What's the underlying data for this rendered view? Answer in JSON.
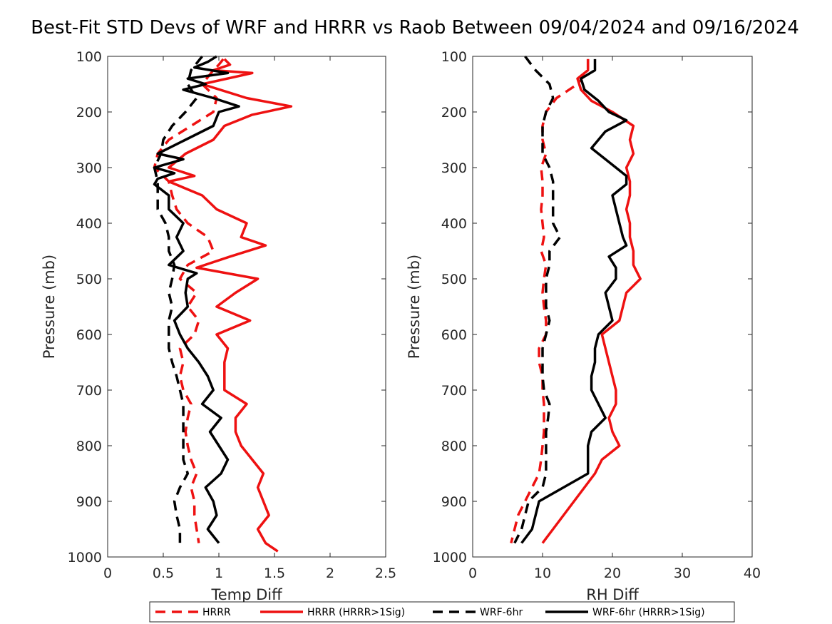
{
  "chart_data": {
    "title": "Best-Fit STD Devs of WRF and HRRR vs Raob Between 09/04/2024 and 09/16/2024",
    "legend": {
      "placement": "bottom",
      "entries": [
        {
          "label": "HRRR",
          "color": "#ee1111",
          "dash": "dashed"
        },
        {
          "label": "HRRR (HRRR>1Sig)",
          "color": "#ee1111",
          "dash": "solid"
        },
        {
          "label": "WRF-6hr",
          "color": "#000000",
          "dash": "dashed"
        },
        {
          "label": "WRF-6hr (HRRR>1Sig)",
          "color": "#000000",
          "dash": "solid"
        }
      ]
    },
    "panels": [
      {
        "type": "line",
        "xlabel": "Temp Diff",
        "ylabel": "Pressure (mb)",
        "xlim": [
          0,
          2.5
        ],
        "ylim": [
          100,
          1000
        ],
        "y_reversed": true,
        "xticks": [
          "0",
          "0.5",
          "1",
          "1.5",
          "2",
          "2.5"
        ],
        "yticks": [
          "100",
          "200",
          "300",
          "400",
          "500",
          "600",
          "700",
          "800",
          "900",
          "1000"
        ],
        "series": [
          {
            "name": "HRRR",
            "color": "#ee1111",
            "dash": "dashed",
            "pressure": [
              105,
              115,
              125,
              150,
              175,
              200,
              225,
              250,
              275,
              300,
              325,
              350,
              375,
              400,
              425,
              450,
              475,
              500,
              525,
              550,
              575,
              600,
              625,
              650,
              675,
              700,
              725,
              750,
              775,
              800,
              825,
              850,
              875,
              900,
              925,
              950,
              975
            ],
            "values": [
              1.04,
              1.0,
              0.95,
              0.85,
              0.98,
              0.95,
              0.75,
              0.55,
              0.45,
              0.42,
              0.55,
              0.58,
              0.62,
              0.72,
              0.9,
              0.95,
              0.72,
              0.65,
              0.8,
              0.72,
              0.82,
              0.78,
              0.65,
              0.68,
              0.65,
              0.68,
              0.75,
              0.72,
              0.7,
              0.72,
              0.75,
              0.8,
              0.75,
              0.78,
              0.78,
              0.8,
              0.82
            ]
          },
          {
            "name": "HRRR (HRRR>1Sig)",
            "color": "#ee1111",
            "dash": "solid",
            "pressure": [
              105,
              115,
              125,
              130,
              150,
              175,
              190,
              205,
              225,
              250,
              275,
              300,
              315,
              325,
              350,
              375,
              400,
              425,
              440,
              460,
              480,
              500,
              525,
              550,
              575,
              600,
              625,
              650,
              675,
              700,
              725,
              750,
              775,
              800,
              825,
              850,
              875,
              900,
              925,
              950,
              975,
              990
            ],
            "values": [
              1.05,
              1.1,
              0.95,
              1.3,
              0.85,
              1.25,
              1.65,
              1.3,
              1.05,
              0.95,
              0.7,
              0.55,
              0.78,
              0.55,
              0.85,
              0.98,
              1.25,
              1.2,
              1.42,
              1.1,
              0.8,
              1.35,
              1.15,
              0.98,
              1.28,
              0.98,
              1.08,
              1.05,
              1.05,
              1.05,
              1.25,
              1.15,
              1.15,
              1.2,
              1.3,
              1.4,
              1.35,
              1.4,
              1.45,
              1.35,
              1.42,
              1.53
            ]
          },
          {
            "name": "WRF-6hr",
            "color": "#000000",
            "dash": "dashed",
            "pressure": [
              100,
              125,
              150,
              175,
              200,
              225,
              250,
              275,
              300,
              325,
              350,
              375,
              400,
              425,
              450,
              475,
              500,
              525,
              550,
              575,
              600,
              625,
              650,
              675,
              700,
              725,
              750,
              775,
              800,
              825,
              850,
              875,
              900,
              925,
              950,
              975
            ],
            "values": [
              0.85,
              0.75,
              0.72,
              0.8,
              0.7,
              0.58,
              0.5,
              0.48,
              0.42,
              0.45,
              0.45,
              0.45,
              0.52,
              0.55,
              0.55,
              0.6,
              0.58,
              0.55,
              0.58,
              0.55,
              0.55,
              0.55,
              0.58,
              0.62,
              0.65,
              0.68,
              0.68,
              0.68,
              0.68,
              0.68,
              0.72,
              0.65,
              0.6,
              0.62,
              0.65,
              0.65
            ]
          },
          {
            "name": "WRF-6hr (HRRR>1Sig)",
            "color": "#000000",
            "dash": "solid",
            "pressure": [
              100,
              110,
              120,
              130,
              140,
              150,
              160,
              175,
              190,
              200,
              225,
              250,
              275,
              285,
              300,
              310,
              320,
              330,
              350,
              375,
              400,
              425,
              450,
              475,
              490,
              500,
              525,
              550,
              575,
              600,
              625,
              650,
              675,
              700,
              725,
              750,
              775,
              800,
              825,
              850,
              875,
              900,
              925,
              950,
              975
            ],
            "values": [
              0.98,
              0.9,
              0.78,
              1.08,
              0.72,
              0.88,
              0.68,
              0.95,
              1.18,
              1.0,
              0.95,
              0.7,
              0.45,
              0.68,
              0.42,
              0.6,
              0.45,
              0.42,
              0.55,
              0.55,
              0.68,
              0.62,
              0.68,
              0.55,
              0.8,
              0.72,
              0.7,
              0.72,
              0.6,
              0.65,
              0.72,
              0.82,
              0.9,
              0.95,
              0.85,
              1.02,
              0.92,
              1.0,
              1.08,
              1.02,
              0.88,
              0.95,
              0.98,
              0.9,
              1.0
            ]
          }
        ]
      },
      {
        "type": "line",
        "xlabel": "RH Diff",
        "ylabel": "Pressure (mb)",
        "xlim": [
          0,
          40
        ],
        "ylim": [
          100,
          1000
        ],
        "y_reversed": true,
        "xticks": [
          "0",
          "10",
          "20",
          "30",
          "40"
        ],
        "yticks": [
          "100",
          "200",
          "300",
          "400",
          "500",
          "600",
          "700",
          "800",
          "900",
          "1000"
        ],
        "series": [
          {
            "name": "HRRR",
            "color": "#ee1111",
            "dash": "dashed",
            "pressure": [
              105,
              125,
              150,
              175,
              200,
              225,
              250,
              275,
              300,
              325,
              350,
              375,
              400,
              425,
              450,
              475,
              500,
              525,
              550,
              575,
              600,
              625,
              650,
              675,
              700,
              725,
              750,
              775,
              800,
              825,
              850,
              875,
              900,
              925,
              950,
              975
            ],
            "values": [
              16.5,
              16.5,
              15.0,
              12.0,
              10.5,
              10.0,
              10.0,
              10.5,
              9.8,
              10.0,
              10.0,
              9.8,
              10.0,
              10.2,
              9.8,
              10.5,
              10.2,
              10.0,
              10.2,
              10.5,
              10.5,
              9.5,
              9.5,
              10.0,
              10.0,
              10.2,
              10.2,
              10.2,
              10.0,
              9.8,
              9.5,
              8.5,
              7.5,
              6.5,
              6.0,
              5.5
            ]
          },
          {
            "name": "HRRR (HRRR>1Sig)",
            "color": "#ee1111",
            "dash": "solid",
            "pressure": [
              105,
              125,
              140,
              160,
              180,
              200,
              225,
              250,
              275,
              300,
              325,
              350,
              375,
              400,
              425,
              450,
              475,
              500,
              525,
              550,
              575,
              600,
              625,
              650,
              675,
              700,
              725,
              750,
              775,
              800,
              825,
              850,
              875,
              900,
              925,
              950,
              975
            ],
            "values": [
              16.5,
              16.5,
              15.0,
              15.5,
              17.0,
              20.0,
              23.0,
              22.5,
              23.0,
              22.0,
              22.5,
              22.5,
              22.0,
              22.5,
              22.5,
              23.0,
              23.0,
              24.0,
              22.0,
              21.5,
              21.0,
              18.5,
              19.0,
              19.5,
              20.0,
              20.5,
              20.5,
              19.5,
              20.0,
              21.0,
              18.5,
              17.5,
              16.0,
              14.5,
              13.0,
              11.5,
              10.0
            ]
          },
          {
            "name": "WRF-6hr",
            "color": "#000000",
            "dash": "dashed",
            "pressure": [
              100,
              125,
              150,
              175,
              200,
              225,
              250,
              275,
              300,
              325,
              350,
              375,
              400,
              425,
              450,
              475,
              500,
              525,
              550,
              575,
              600,
              625,
              650,
              675,
              700,
              725,
              750,
              775,
              800,
              825,
              850,
              875,
              900,
              925,
              950,
              975
            ],
            "values": [
              7.5,
              9.0,
              11.0,
              11.5,
              10.5,
              10.0,
              10.0,
              10.0,
              11.0,
              11.5,
              11.5,
              11.5,
              11.5,
              12.5,
              11.0,
              11.0,
              10.5,
              10.5,
              10.5,
              11.0,
              10.5,
              10.0,
              10.0,
              10.0,
              10.2,
              11.0,
              10.8,
              10.5,
              10.5,
              10.5,
              10.5,
              10.0,
              8.0,
              7.5,
              7.0,
              6.0
            ]
          },
          {
            "name": "WRF-6hr (HRRR>1Sig)",
            "color": "#000000",
            "dash": "solid",
            "pressure": [
              105,
              125,
              140,
              160,
              180,
              200,
              215,
              235,
              250,
              265,
              300,
              315,
              330,
              350,
              375,
              400,
              425,
              440,
              460,
              480,
              500,
              525,
              550,
              575,
              600,
              625,
              650,
              675,
              700,
              725,
              750,
              775,
              800,
              825,
              850,
              875,
              900,
              925,
              950,
              975
            ],
            "values": [
              17.5,
              17.5,
              15.5,
              16.0,
              18.0,
              19.5,
              22.0,
              19.0,
              18.0,
              17.0,
              20.5,
              22.0,
              22.0,
              20.0,
              20.5,
              21.0,
              21.5,
              22.0,
              19.5,
              20.5,
              20.5,
              19.0,
              19.5,
              20.0,
              18.0,
              17.5,
              17.5,
              17.0,
              17.0,
              18.0,
              19.0,
              17.0,
              16.5,
              16.5,
              16.5,
              13.0,
              9.5,
              9.0,
              8.5,
              7.0
            ]
          }
        ]
      }
    ]
  }
}
